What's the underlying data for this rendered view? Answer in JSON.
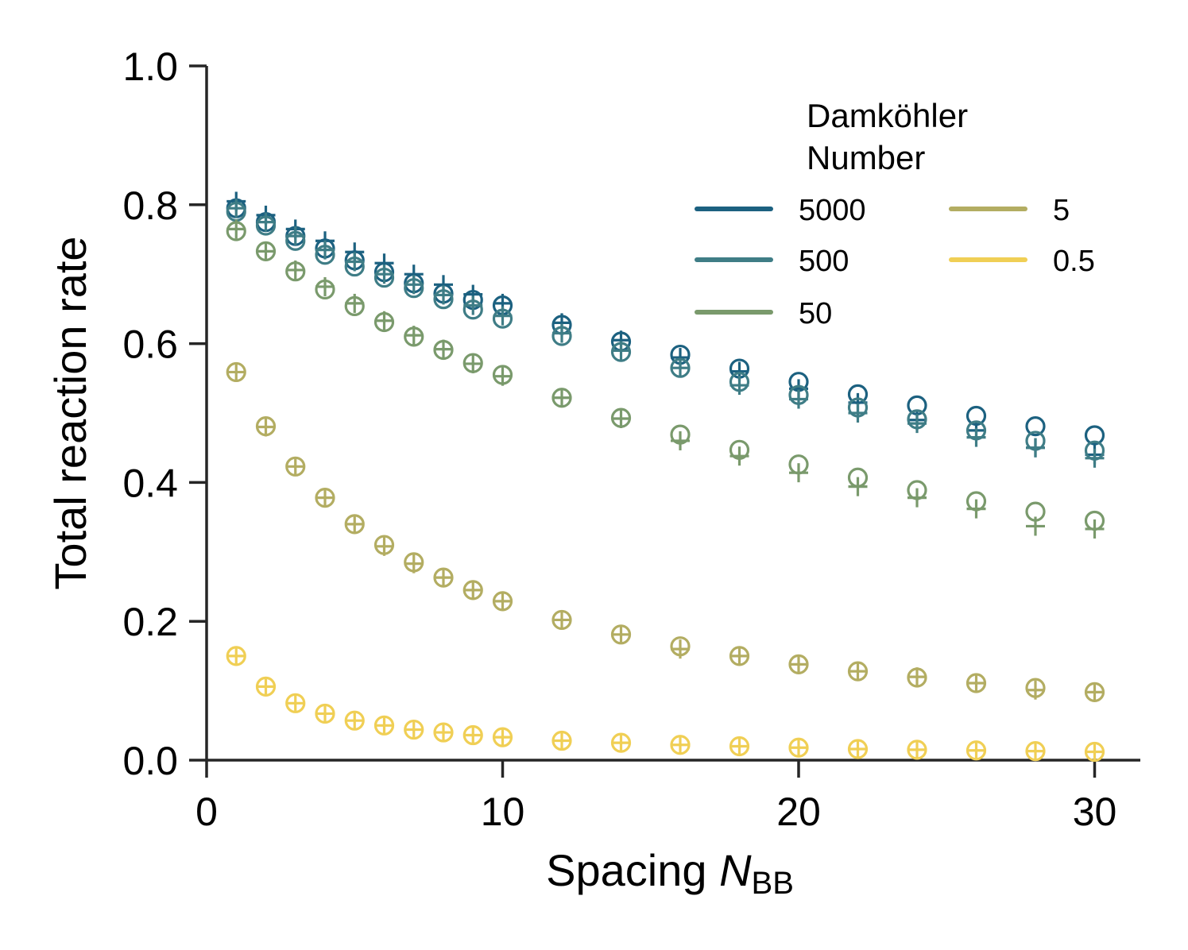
{
  "chart_data": {
    "type": "scatter",
    "xlabel": "Spacing",
    "xlabel_symbol": "N",
    "xlabel_subscript": "BB",
    "ylabel": "Total reaction rate",
    "xlim": [
      0,
      31.5
    ],
    "ylim": [
      0,
      1.0
    ],
    "xticks": [
      0,
      10,
      20,
      30
    ],
    "xtick_labels": [
      "0",
      "10",
      "20",
      "30"
    ],
    "yticks": [
      0.0,
      0.2,
      0.4,
      0.6,
      0.8,
      1.0
    ],
    "ytick_labels": [
      "0.0",
      "0.2",
      "0.4",
      "0.6",
      "0.8",
      "1.0"
    ],
    "grid": false,
    "legend": {
      "title_line1": "Damköhler",
      "title_line2": "Number",
      "placement": "upper-right",
      "columns": 2
    },
    "x": [
      1,
      2,
      3,
      4,
      5,
      6,
      7,
      8,
      9,
      10,
      12,
      14,
      16,
      18,
      20,
      22,
      24,
      26,
      28,
      30
    ],
    "marker_types": [
      "circle",
      "plus"
    ],
    "series": [
      {
        "name": "5000",
        "color": "#1c6180",
        "circle": [
          0.795,
          0.775,
          0.755,
          0.737,
          0.72,
          0.703,
          0.687,
          0.672,
          0.663,
          0.655,
          0.627,
          0.603,
          0.584,
          0.564,
          0.545,
          0.527,
          0.511,
          0.496,
          0.481,
          0.468
        ],
        "plus": [
          0.805,
          0.785,
          0.765,
          0.748,
          0.732,
          0.716,
          0.7,
          0.685,
          0.671,
          0.658,
          0.63,
          0.605,
          0.58,
          0.56,
          0.535,
          0.515,
          0.49,
          0.475,
          0.45,
          0.44
        ]
      },
      {
        "name": "500",
        "color": "#3f7d86",
        "circle": [
          0.79,
          0.77,
          0.748,
          0.728,
          0.711,
          0.695,
          0.68,
          0.664,
          0.649,
          0.636,
          0.611,
          0.588,
          0.565,
          0.545,
          0.526,
          0.508,
          0.491,
          0.475,
          0.46,
          0.446
        ],
        "plus": [
          0.795,
          0.775,
          0.755,
          0.735,
          0.718,
          0.7,
          0.685,
          0.67,
          0.655,
          0.64,
          0.615,
          0.59,
          0.565,
          0.54,
          0.52,
          0.5,
          0.485,
          0.465,
          0.45,
          0.435
        ]
      },
      {
        "name": "50",
        "color": "#7a9a6c",
        "circle": [
          0.762,
          0.733,
          0.704,
          0.678,
          0.654,
          0.631,
          0.61,
          0.591,
          0.572,
          0.555,
          0.522,
          0.493,
          0.469,
          0.447,
          0.426,
          0.407,
          0.389,
          0.373,
          0.358,
          0.345
        ],
        "plus": [
          0.765,
          0.733,
          0.706,
          0.682,
          0.658,
          0.633,
          0.612,
          0.592,
          0.571,
          0.553,
          0.522,
          0.492,
          0.46,
          0.438,
          0.414,
          0.394,
          0.378,
          0.362,
          0.337,
          0.333
        ]
      },
      {
        "name": "5",
        "color": "#b3ad62",
        "circle": [
          0.559,
          0.481,
          0.423,
          0.378,
          0.34,
          0.31,
          0.285,
          0.263,
          0.245,
          0.229,
          0.202,
          0.181,
          0.164,
          0.15,
          0.138,
          0.128,
          0.119,
          0.111,
          0.104,
          0.098
        ],
        "plus": [
          0.559,
          0.48,
          0.423,
          0.378,
          0.34,
          0.308,
          0.283,
          0.263,
          0.245,
          0.229,
          0.202,
          0.181,
          0.16,
          0.15,
          0.138,
          0.128,
          0.12,
          0.111,
          0.101,
          0.098
        ]
      },
      {
        "name": "0.5",
        "color": "#f0cf55",
        "circle": [
          0.15,
          0.106,
          0.082,
          0.067,
          0.057,
          0.05,
          0.044,
          0.04,
          0.036,
          0.033,
          0.028,
          0.025,
          0.022,
          0.02,
          0.018,
          0.016,
          0.015,
          0.014,
          0.013,
          0.012
        ],
        "plus": [
          0.15,
          0.106,
          0.082,
          0.067,
          0.057,
          0.05,
          0.044,
          0.04,
          0.036,
          0.033,
          0.028,
          0.025,
          0.022,
          0.02,
          0.018,
          0.016,
          0.015,
          0.014,
          0.013,
          0.012
        ]
      }
    ]
  }
}
